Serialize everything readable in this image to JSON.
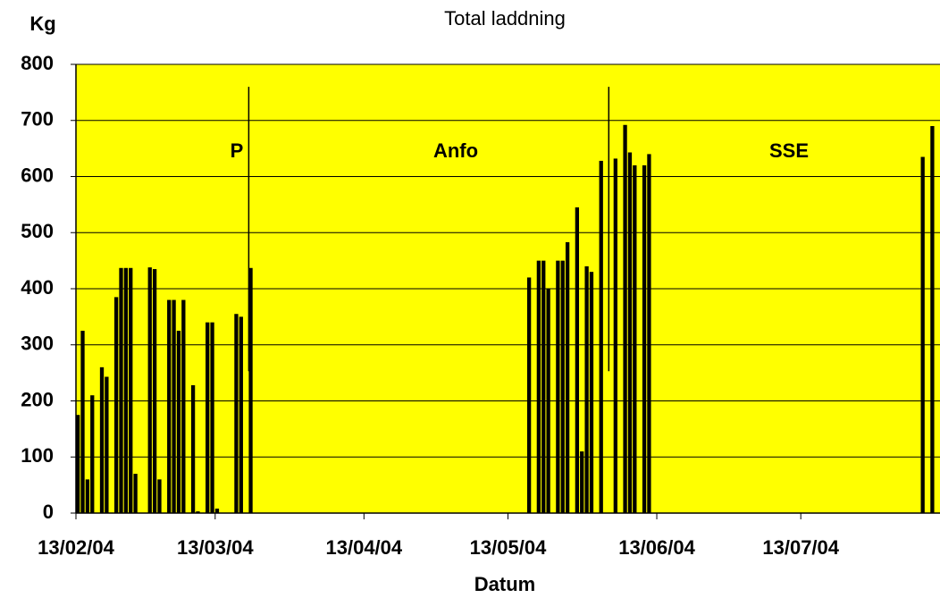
{
  "chart_data": {
    "type": "bar",
    "title": "Total laddning",
    "y_label": "Kg",
    "x_label": "Datum",
    "color": "#000000",
    "background": "#ffff00",
    "grid": true,
    "annotations": [
      "P",
      "Anfo",
      "SSE"
    ],
    "x": [
      "2004-02-13",
      "2004-02-14",
      "2004-02-15",
      "2004-02-16",
      "2004-02-18",
      "2004-02-19",
      "2004-02-21",
      "2004-02-22",
      "2004-02-23",
      "2004-02-24",
      "2004-02-25",
      "2004-02-28",
      "2004-02-29",
      "2004-03-01",
      "2004-03-03",
      "2004-03-04",
      "2004-03-05",
      "2004-03-06",
      "2004-03-08",
      "2004-03-09",
      "2004-03-11",
      "2004-03-12",
      "2004-03-13",
      "2004-03-17",
      "2004-03-18",
      "2004-03-20",
      "2004-05-17",
      "2004-05-19",
      "2004-05-20",
      "2004-05-21",
      "2004-05-23",
      "2004-05-24",
      "2004-05-25",
      "2004-05-27",
      "2004-05-28",
      "2004-05-29",
      "2004-05-30",
      "2004-06-01",
      "2004-06-04",
      "2004-06-06",
      "2004-06-07",
      "2004-06-08",
      "2004-06-10",
      "2004-06-11",
      "2004-08-07",
      "2004-08-09"
    ],
    "values": [
      175,
      325,
      60,
      210,
      260,
      243,
      385,
      437,
      437,
      437,
      70,
      438,
      435,
      60,
      380,
      380,
      325,
      380,
      228,
      3,
      340,
      340,
      8,
      355,
      350,
      437,
      420,
      450,
      450,
      400,
      450,
      450,
      483,
      545,
      110,
      440,
      430,
      628,
      632,
      692,
      643,
      620,
      620,
      640,
      635,
      690
    ],
    "spikes": [
      {
        "x": "2004-03-20",
        "values": [
          253,
          760
        ]
      },
      {
        "x": "2004-06-03",
        "values": [
          253,
          760
        ]
      }
    ],
    "xlim": [
      "2004-02-13",
      "2004-08-10"
    ],
    "xticks": [
      {
        "value": "2004-02-13",
        "label": "13/02/04"
      },
      {
        "value": "2004-03-13",
        "label": "13/03/04"
      },
      {
        "value": "2004-04-13",
        "label": "13/04/04"
      },
      {
        "value": "2004-05-13",
        "label": "13/05/04"
      },
      {
        "value": "2004-06-13",
        "label": "13/06/04"
      },
      {
        "value": "2004-07-13",
        "label": "13/07/04"
      }
    ],
    "ylim": [
      0,
      800
    ],
    "yticks": [
      0,
      100,
      200,
      300,
      400,
      500,
      600,
      700,
      800
    ]
  }
}
